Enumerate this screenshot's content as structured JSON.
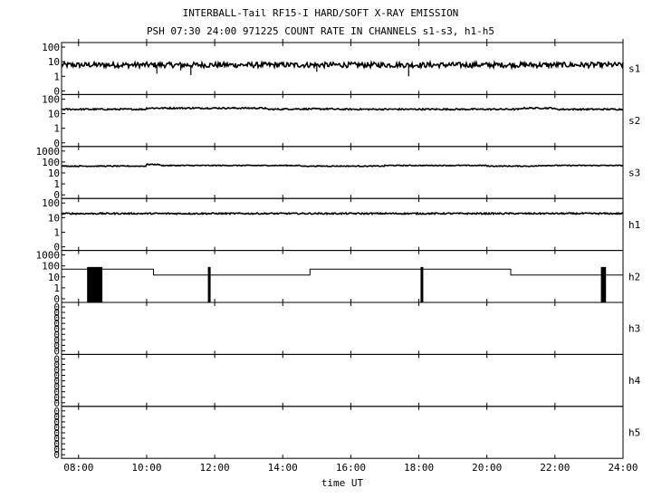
{
  "title_line1": "INTERBALL-Tail RF15-I HARD/SOFT X-RAY EMISSION",
  "title_line2": "PSH 07:30 24:00 971225  COUNT RATE IN CHANNELS s1-s3, h1-h5",
  "chart_data": {
    "type": "line",
    "xlabel": "time UT",
    "xlim": [
      7.5,
      24.0
    ],
    "x_ticks": [
      8,
      10,
      12,
      14,
      16,
      18,
      20,
      22,
      24
    ],
    "x_tick_labels": [
      "08:00",
      "10:00",
      "12:00",
      "14:00",
      "16:00",
      "18:00",
      "20:00",
      "22:00",
      "24:00"
    ],
    "y_scale": "log",
    "panels": [
      {
        "channel": "s1",
        "tick_labels": [
          "100",
          "10",
          "1",
          "0"
        ],
        "level": 6,
        "noise": 0.18,
        "bumps": [],
        "spikes": [
          [
            10.3,
            1.5
          ],
          [
            11.0,
            2.5
          ],
          [
            11.3,
            1.2
          ],
          [
            15.0,
            2.0
          ],
          [
            17.7,
            1.0
          ]
        ]
      },
      {
        "channel": "s2",
        "tick_labels": [
          "100",
          "10",
          "1",
          "0"
        ],
        "level": 20,
        "noise": 0.05,
        "bumps": [
          [
            10.0,
            13.5,
            24
          ],
          [
            14.0,
            15.5,
            21
          ],
          [
            21.0,
            22.0,
            24
          ]
        ],
        "spikes": []
      },
      {
        "channel": "s3",
        "tick_labels": [
          "1000",
          "100",
          "10",
          "1",
          "0"
        ],
        "level": 42,
        "noise": 0.04,
        "bumps": [
          [
            10.0,
            10.4,
            60
          ],
          [
            10.4,
            14.5,
            48
          ],
          [
            17.0,
            20.0,
            48
          ],
          [
            21.5,
            24.0,
            48
          ]
        ],
        "spikes": []
      },
      {
        "channel": "h1",
        "tick_labels": [
          "100",
          "10",
          "1",
          "0"
        ],
        "level": 19,
        "noise": 0.05,
        "bumps": [],
        "spikes": []
      },
      {
        "channel": "h2",
        "tick_labels": [
          "1000",
          "100",
          "10",
          "1",
          "0"
        ],
        "steps": [
          [
            7.5,
            10.2,
            50
          ],
          [
            10.2,
            14.8,
            15
          ],
          [
            14.8,
            20.7,
            50
          ],
          [
            20.7,
            24.0,
            15
          ]
        ],
        "bursts": [
          [
            8.25,
            8.7,
            80
          ],
          [
            11.8,
            11.88,
            80
          ],
          [
            18.05,
            18.13,
            80
          ],
          [
            23.35,
            23.5,
            80
          ]
        ]
      },
      {
        "channel": "h3",
        "tick_labels": [
          "0",
          "0",
          "0",
          "0",
          "0",
          "0",
          "0",
          "0",
          "0"
        ]
      },
      {
        "channel": "h4",
        "tick_labels": [
          "0",
          "0",
          "0",
          "0",
          "0",
          "0",
          "0",
          "0",
          "0"
        ]
      },
      {
        "channel": "h5",
        "tick_labels": [
          "0",
          "0",
          "0",
          "0",
          "0",
          "0",
          "0",
          "0",
          "0"
        ]
      }
    ]
  }
}
